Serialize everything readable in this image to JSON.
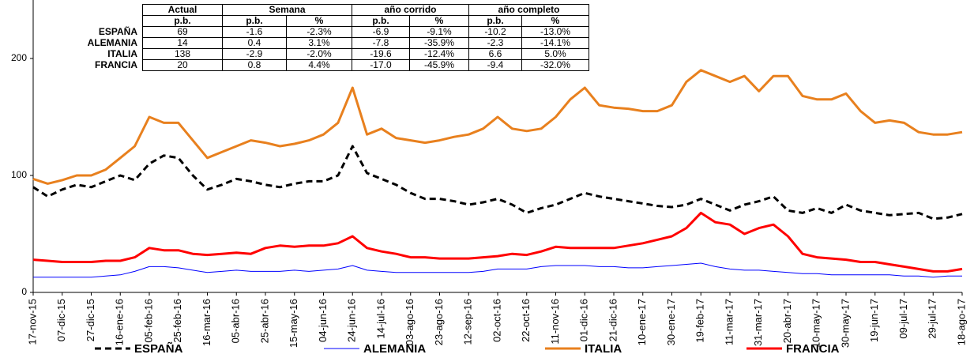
{
  "chart_data": {
    "type": "line",
    "categories": [
      "17-nov-15",
      null,
      "07-dic-15",
      null,
      "27-dic-15",
      null,
      "16-ene-16",
      null,
      "05-feb-16",
      null,
      "25-feb-16",
      null,
      "16-mar-16",
      null,
      "05-abr-16",
      null,
      "25-abr-16",
      null,
      "15-may-16",
      null,
      "04-jun-16",
      null,
      "24-jun-16",
      null,
      "14-jul-16",
      null,
      "03-ago-16",
      null,
      "23-ago-16",
      null,
      "12-sep-16",
      null,
      "02-oct-16",
      null,
      "22-oct-16",
      null,
      "11-nov-16",
      null,
      "01-dic-16",
      null,
      "21-dic-16",
      null,
      "10-ene-17",
      null,
      "30-ene-17",
      null,
      "19-feb-17",
      null,
      "11-mar-17",
      null,
      "31-mar-17",
      null,
      "20-abr-17",
      null,
      "10-may-17",
      null,
      "30-may-17",
      null,
      "19-jun-17",
      null,
      "09-jul-17",
      null,
      "29-jul-17",
      null,
      "18-ago-17"
    ],
    "series": [
      {
        "name": "ESPAÑA",
        "color": "#000000",
        "dashed": true,
        "width": 3,
        "values": [
          90,
          82,
          88,
          92,
          90,
          95,
          100,
          96,
          110,
          117,
          115,
          100,
          88,
          92,
          97,
          95,
          92,
          90,
          93,
          95,
          95,
          100,
          125,
          102,
          97,
          92,
          85,
          80,
          80,
          78,
          75,
          77,
          80,
          75,
          68,
          72,
          75,
          80,
          85,
          82,
          80,
          78,
          76,
          74,
          73,
          75,
          80,
          75,
          70,
          75,
          78,
          82,
          70,
          68,
          72,
          68,
          75,
          70,
          68,
          66,
          67,
          68,
          63,
          64,
          67
        ]
      },
      {
        "name": "ALEMANIA",
        "color": "#0000ff",
        "dashed": false,
        "width": 1,
        "values": [
          13,
          13,
          13,
          13,
          13,
          14,
          15,
          18,
          22,
          22,
          21,
          19,
          17,
          18,
          19,
          18,
          18,
          18,
          19,
          18,
          19,
          20,
          23,
          19,
          18,
          17,
          17,
          17,
          17,
          17,
          17,
          18,
          20,
          20,
          20,
          22,
          23,
          23,
          23,
          22,
          22,
          21,
          21,
          22,
          23,
          24,
          25,
          22,
          20,
          19,
          19,
          18,
          17,
          16,
          16,
          15,
          15,
          15,
          15,
          15,
          14,
          14,
          13,
          14,
          14
        ]
      },
      {
        "name": "ITALIA",
        "color": "#e8801e",
        "dashed": false,
        "width": 3,
        "values": [
          97,
          93,
          96,
          100,
          100,
          105,
          115,
          125,
          150,
          145,
          145,
          130,
          115,
          120,
          125,
          130,
          128,
          125,
          127,
          130,
          135,
          145,
          175,
          135,
          140,
          132,
          130,
          128,
          130,
          133,
          135,
          140,
          150,
          140,
          138,
          140,
          150,
          165,
          175,
          160,
          158,
          157,
          155,
          155,
          160,
          180,
          190,
          185,
          180,
          185,
          172,
          185,
          185,
          168,
          165,
          165,
          170,
          155,
          145,
          147,
          145,
          137,
          135,
          135,
          137
        ]
      },
      {
        "name": "FRANCIA",
        "color": "#ff0000",
        "dashed": false,
        "width": 3,
        "values": [
          28,
          27,
          26,
          26,
          26,
          27,
          27,
          30,
          38,
          36,
          36,
          33,
          32,
          33,
          34,
          33,
          38,
          40,
          39,
          40,
          40,
          42,
          48,
          38,
          35,
          33,
          30,
          30,
          29,
          29,
          29,
          30,
          31,
          33,
          32,
          35,
          39,
          38,
          38,
          38,
          38,
          40,
          42,
          45,
          48,
          55,
          68,
          60,
          58,
          50,
          55,
          58,
          48,
          33,
          30,
          29,
          28,
          26,
          26,
          24,
          22,
          20,
          18,
          18,
          20
        ]
      }
    ],
    "ylim": [
      0,
      250
    ],
    "yticks": [
      0,
      100,
      200
    ],
    "legend": "bottom"
  },
  "table": {
    "groups": [
      "Actual",
      "Semana",
      "año corrido",
      "año completo"
    ],
    "subheaders": [
      "p.b.",
      "p.b.",
      "%",
      "p.b.",
      "%",
      "p.b.",
      "%"
    ],
    "rows": [
      [
        "ESPAÑA",
        "69",
        "-1.6",
        "-2.3%",
        "-6.9",
        "-9.1%",
        "-10.2",
        "-13.0%"
      ],
      [
        "ALEMANIA",
        "14",
        "0.4",
        "3.1%",
        "-7.8",
        "-35.9%",
        "-2.3",
        "-14.1%"
      ],
      [
        "ITALIA",
        "138",
        "-2.9",
        "-2.0%",
        "-19.6",
        "-12.4%",
        "6.6",
        "5.0%"
      ],
      [
        "FRANCIA",
        "20",
        "0.8",
        "4.4%",
        "-17.0",
        "-45.9%",
        "-9.4",
        "-32.0%"
      ]
    ]
  }
}
